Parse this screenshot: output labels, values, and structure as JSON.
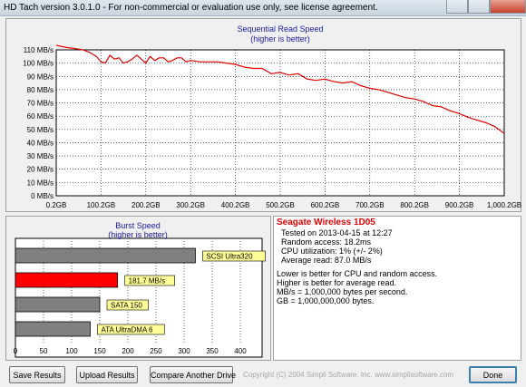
{
  "window": {
    "title": "HD Tach version 3.0.1.0  - For non-commercial or evaluation use only, see license agreement."
  },
  "seq_chart": {
    "title": "Sequential Read Speed",
    "subtitle": "(higher is better)"
  },
  "burst_chart": {
    "title": "Burst Speed",
    "subtitle": "(higher is better)"
  },
  "chart_data": [
    {
      "type": "line",
      "title": "Sequential Read Speed",
      "subtitle": "(higher is better)",
      "x_unit_labels": [
        "0.2GB",
        "100.2GB",
        "200.2GB",
        "300.2GB",
        "400.2GB",
        "500.2GB",
        "600.2GB",
        "700.2GB",
        "800.2GB",
        "900.2GB",
        "1,000.2GB"
      ],
      "y_tick_labels": [
        "0 MB/s",
        "10 MB/s",
        "20 MB/s",
        "30 MB/s",
        "40 MB/s",
        "50 MB/s",
        "60 MB/s",
        "70 MB/s",
        "80 MB/s",
        "90 MB/s",
        "100 MB/s",
        "110 MB/s"
      ],
      "xlim": [
        0.2,
        1000.2
      ],
      "ylim": [
        0,
        110
      ],
      "grid": true,
      "line_color": "#e00000",
      "x": [
        0.2,
        20,
        40,
        60,
        75,
        90,
        100,
        110,
        120,
        130,
        140,
        150,
        160,
        170,
        180,
        190,
        200,
        210,
        220,
        230,
        240,
        250,
        260,
        270,
        280,
        290,
        300,
        320,
        340,
        360,
        380,
        400,
        420,
        440,
        460,
        480,
        500,
        520,
        540,
        560,
        580,
        600,
        620,
        640,
        660,
        680,
        700,
        720,
        740,
        760,
        780,
        800,
        820,
        840,
        860,
        880,
        900,
        920,
        940,
        960,
        980,
        1000.2
      ],
      "y": [
        113.5,
        112,
        111,
        110,
        108,
        105,
        101,
        100,
        106,
        103,
        104,
        100,
        101,
        103,
        106,
        103,
        100,
        105,
        102,
        104,
        104,
        101,
        102,
        104,
        104,
        101,
        102,
        101,
        101,
        101,
        100,
        99,
        97,
        96,
        96,
        92,
        93,
        91,
        92,
        88,
        87,
        88,
        86,
        85,
        86,
        83,
        81,
        80,
        78,
        76,
        74,
        73,
        71,
        68,
        67,
        64,
        62,
        59,
        57,
        55,
        52,
        47
      ]
    },
    {
      "type": "bar",
      "title": "Burst Speed",
      "subtitle": "(higher is better)",
      "categories": [
        "SCSI Ultra320",
        "181.7 MB/s",
        "SATA 150",
        "ATA UltraDMA 6"
      ],
      "values": [
        320,
        181.7,
        150,
        133
      ],
      "colors": [
        "#808080",
        "#ff0000",
        "#808080",
        "#808080"
      ],
      "x_tick_labels": [
        "0",
        "50",
        "100",
        "150",
        "200",
        "250",
        "300",
        "350",
        "400"
      ],
      "xlim": [
        0,
        400
      ]
    }
  ],
  "results": {
    "drive_name": "Seagate Wireless 1D05",
    "lines": [
      "Tested on 2013-04-15 at 12:27",
      "Random access: 18.2ms",
      "CPU utilization: 1% (+/- 2%)",
      "Average read: 87.0 MB/s"
    ],
    "notes": [
      "Lower is better for CPU and random access.",
      "Higher is better for average read.",
      "MB/s = 1,000,000 bytes per second.",
      "GB = 1,000,000,000 bytes."
    ]
  },
  "buttons": {
    "save": "Save Results",
    "upload": "Upload Results",
    "compare": "Compare Another Drive",
    "done": "Done"
  },
  "copyright": "Copyright (C) 2004 Simpli Software, Inc. www.simplisoftware.com"
}
